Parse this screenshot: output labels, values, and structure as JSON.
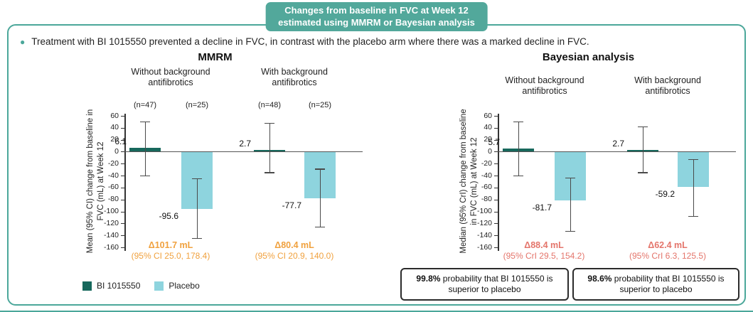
{
  "badge": {
    "line1": "Changes from baseline in FVC at Week 12",
    "line2": "estimated using MMRM or Bayesian analysis"
  },
  "bullet_text": "Treatment with BI 1015550 prevented a decline in FVC, in contrast with the placebo arm where there was a marked decline in FVC.",
  "legend": {
    "items": [
      {
        "label": "BI 1015550",
        "color": "#17685C"
      },
      {
        "label": "Placebo",
        "color": "#8ED4DE"
      }
    ]
  },
  "colors": {
    "accent_teal": "#4BA79A",
    "badge_background": "#52A89B",
    "bar_bi": "#17685C",
    "bar_placebo": "#8ED4DE",
    "delta_mmrm": "#F0A13E",
    "delta_bayesian": "#E4756B",
    "error_bar": "#4a4a4a"
  },
  "chart_data": [
    {
      "type": "bar",
      "title": "MMRM",
      "ylabel": "Mean (95% CI) change from baseline in FVC (mL) at Week 12",
      "ylim": [
        -160,
        60
      ],
      "ytick_step": 20,
      "grid": false,
      "legend_position": "bottom-left",
      "delta_color": "#F0A13E",
      "groups": [
        {
          "label": "Without background antifibrotics",
          "bars": [
            {
              "series": "BI 1015550",
              "n": "(n=47)",
              "value": 6.1,
              "ci": [
                -40,
                50
              ]
            },
            {
              "series": "Placebo",
              "n": "(n=25)",
              "value": -95.6,
              "ci": [
                -145,
                -45
              ]
            }
          ],
          "delta": "Δ101.7 mL",
          "delta_ci": "(95% CI 25.0, 178.4)"
        },
        {
          "label": "With background antifibrotics",
          "bars": [
            {
              "series": "BI 1015550",
              "n": "(n=48)",
              "value": 2.7,
              "ci": [
                -35,
                48
              ]
            },
            {
              "series": "Placebo",
              "n": "(n=25)",
              "value": -77.7,
              "ci": [
                -126,
                -29
              ]
            }
          ],
          "delta": "Δ80.4 mL",
          "delta_ci": "(95% CI 20.9, 140.0)"
        }
      ]
    },
    {
      "type": "bar",
      "title": "Bayesian analysis",
      "ylabel": "Median (95% CrI) change from baseline in FVC (mL) at Week 12",
      "ylim": [
        -160,
        60
      ],
      "ytick_step": 20,
      "grid": false,
      "delta_color": "#E4756B",
      "groups": [
        {
          "label": "Without background antifibrotics",
          "bars": [
            {
              "series": "BI 1015550",
              "value": 5.7,
              "ci": [
                -40,
                50
              ]
            },
            {
              "series": "Placebo",
              "value": -81.7,
              "ci": [
                -133,
                -44
              ]
            }
          ],
          "delta": "Δ88.4 mL",
          "delta_ci": "(95% CrI 29.5, 154.2)"
        },
        {
          "label": "With background antifibrotics",
          "bars": [
            {
              "series": "BI 1015550",
              "value": 2.7,
              "ci": [
                -35,
                42
              ]
            },
            {
              "series": "Placebo",
              "value": -59.2,
              "ci": [
                -108,
                -13
              ]
            }
          ],
          "delta": "Δ62.4 mL",
          "delta_ci": "(95% CrI 6.3, 125.5)"
        }
      ],
      "probability_boxes": [
        {
          "highlight": "99.8%",
          "text": " probability that BI 1015550 is superior to placebo"
        },
        {
          "highlight": "98.6%",
          "text": " probability that BI 1015550 is superior to placebo"
        }
      ]
    }
  ]
}
